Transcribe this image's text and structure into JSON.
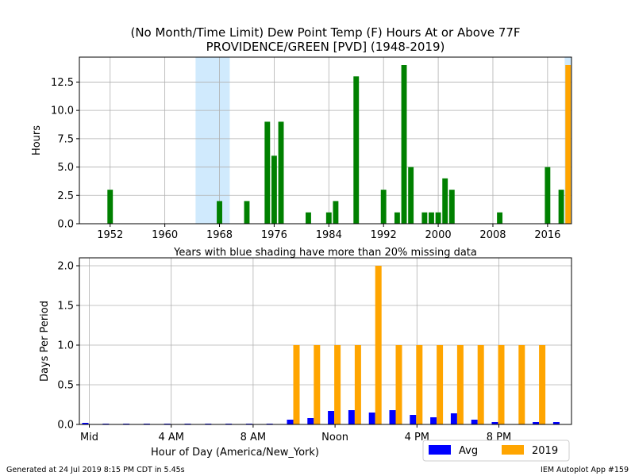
{
  "figure": {
    "title_line1": "(No Month/Time Limit) Dew Point Temp (F) Hours At or Above 77F",
    "title_line2": "PROVIDENCE/GREEN [PVD] (1948-2019)",
    "footer_left": "Generated at 24 Jul 2019 8:15 PM CDT in 5.45s",
    "footer_right": "IEM Autoplot App #159"
  },
  "chart_data": [
    {
      "type": "bar",
      "ylabel": "Hours",
      "xlabel": "Years with blue shading have more than 20% missing data",
      "xlim": [
        1947.5,
        2019.5
      ],
      "ylim": [
        0,
        14.7
      ],
      "xticks": [
        1952,
        1960,
        1968,
        1976,
        1984,
        1992,
        2000,
        2008,
        2016
      ],
      "yticks": [
        0.0,
        2.5,
        5.0,
        7.5,
        10.0,
        12.5
      ],
      "ytick_labels": [
        "0.0",
        "2.5",
        "5.0",
        "7.5",
        "10.0",
        "12.5"
      ],
      "grid": true,
      "bar_color": "#008000",
      "highlight_color": "#ffa500",
      "missing_shade_color": "#d0eafd",
      "missing_ranges": [
        [
          1964.5,
          1969.5
        ],
        [
          2018.5,
          2019.5
        ]
      ],
      "series": [
        {
          "x": [
            1952,
            1968,
            1972,
            1975,
            1976,
            1977,
            1981,
            1984,
            1985,
            1988,
            1992,
            1994,
            1995,
            1996,
            1998,
            1999,
            2000,
            2001,
            2002,
            2009,
            2016,
            2018
          ],
          "values": [
            3,
            2,
            2,
            9,
            6,
            9,
            1,
            1,
            2,
            13,
            3,
            1,
            14,
            5,
            1,
            1,
            1,
            4,
            3,
            1,
            5,
            3
          ]
        }
      ],
      "highlight": {
        "x": 2019,
        "value": 14
      }
    },
    {
      "type": "bar",
      "ylabel": "Days Per Period",
      "xlabel": "Hour of Day (America/New_York)",
      "categories": [
        "0",
        "1",
        "2",
        "3",
        "4",
        "5",
        "6",
        "7",
        "8",
        "9",
        "10",
        "11",
        "12",
        "13",
        "14",
        "15",
        "16",
        "17",
        "18",
        "19",
        "20",
        "21",
        "22",
        "23"
      ],
      "xticks": [
        0,
        4,
        8,
        12,
        16,
        20
      ],
      "xtick_labels": [
        "Mid",
        "4 AM",
        "8 AM",
        "Noon",
        "4 PM",
        "8 PM"
      ],
      "yticks": [
        0.0,
        0.5,
        1.0,
        1.5,
        2.0
      ],
      "ytick_labels": [
        "0.0",
        "0.5",
        "1.0",
        "1.5",
        "2.0"
      ],
      "ylim": [
        0,
        2.1
      ],
      "grid": true,
      "legend_position": "below-right",
      "series": [
        {
          "name": "Avg",
          "color": "#0000ff",
          "values": [
            0.02,
            0.01,
            0.01,
            0.01,
            0.01,
            0.01,
            0.01,
            0.01,
            0.01,
            0.01,
            0.06,
            0.08,
            0.17,
            0.18,
            0.15,
            0.18,
            0.12,
            0.09,
            0.14,
            0.06,
            0.03,
            0.0,
            0.03,
            0.03
          ]
        },
        {
          "name": "2019",
          "color": "#ffa500",
          "values": [
            0,
            0,
            0,
            0,
            0,
            0,
            0,
            0,
            0,
            0,
            1,
            1,
            1,
            1,
            2,
            1,
            1,
            1,
            1,
            1,
            1,
            1,
            1,
            0
          ]
        }
      ]
    }
  ]
}
